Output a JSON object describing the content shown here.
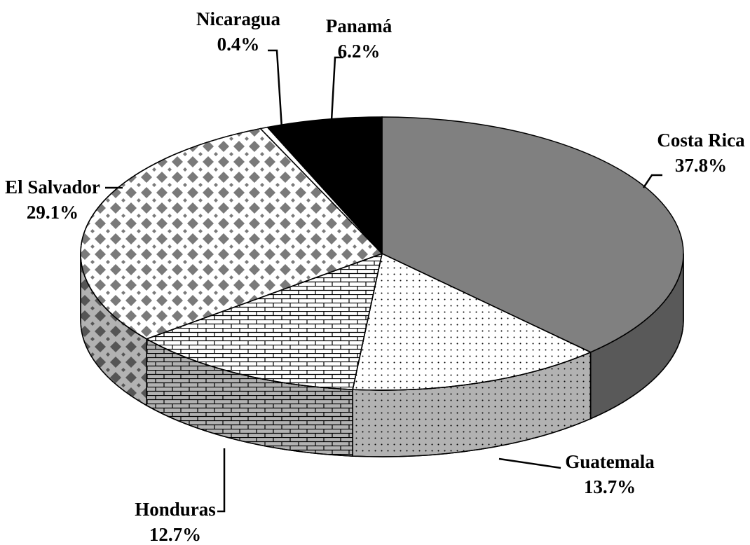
{
  "chart_data": {
    "type": "pie3d",
    "categories": [
      "Costa Rica",
      "Guatemala",
      "Honduras",
      "El Salvador",
      "Nicaragua",
      "Panamá"
    ],
    "values": [
      37.8,
      13.7,
      12.7,
      29.1,
      0.4,
      6.2
    ],
    "value_labels": [
      "37.8%",
      "13.7%",
      "12.7%",
      "29.1%",
      "0.4%",
      "6.2%"
    ],
    "colors": [
      "#808080",
      "#ffffff",
      "#ffffff",
      "#ffffff",
      "#ffffff",
      "#000000"
    ]
  }
}
